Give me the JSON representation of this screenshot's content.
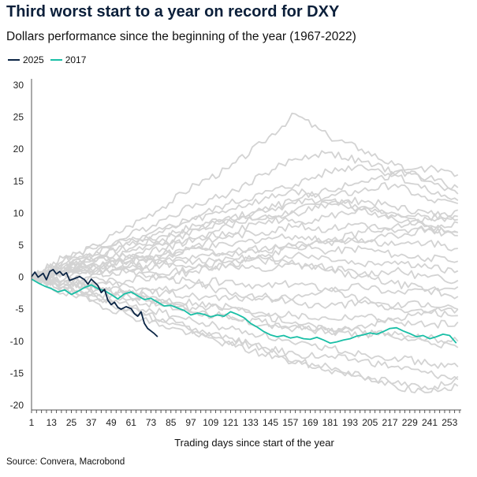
{
  "chart_data": {
    "type": "line",
    "title": "Third worst start to a year on record for DXY",
    "subtitle": "Dollars performance since the beginning of the year (1967-2022)",
    "xlabel": "Trading days since start of the year",
    "ylabel": "",
    "source": "Source: Convera, Macrobond",
    "xlim": [
      1,
      260
    ],
    "ylim": [
      -20,
      30
    ],
    "x_ticks": [
      1,
      13,
      25,
      37,
      49,
      61,
      73,
      85,
      97,
      109,
      121,
      133,
      145,
      157,
      169,
      181,
      193,
      205,
      217,
      229,
      241,
      253
    ],
    "y_ticks": [
      30,
      25,
      20,
      15,
      10,
      5,
      0,
      -5,
      -10,
      -15,
      -20
    ],
    "colors": {
      "background_years": "#d3d3d3",
      "y2025": "#0b2545",
      "y2017": "#19bfa6",
      "axis": "#555555"
    },
    "legend": [
      {
        "label": "2025",
        "color": "#0b2545"
      },
      {
        "label": "2017",
        "color": "#19bfa6"
      }
    ],
    "series": [
      {
        "name": "2025",
        "highlight": true,
        "color": "#0b2545",
        "x": [
          1,
          3,
          5,
          8,
          10,
          12,
          14,
          16,
          18,
          20,
          22,
          24,
          26,
          28,
          30,
          33,
          35,
          37,
          39,
          41,
          43,
          45,
          47,
          49,
          51,
          53,
          55,
          58,
          61,
          63,
          65,
          67,
          69,
          71,
          73,
          75,
          77
        ],
        "y": [
          0.1,
          0.8,
          0.0,
          0.6,
          -0.4,
          0.9,
          1.2,
          0.5,
          0.9,
          0.3,
          0.7,
          -0.5,
          -0.3,
          -0.1,
          0.1,
          -0.4,
          -1.1,
          -0.3,
          -0.8,
          -1.3,
          -2.4,
          -1.9,
          -3.6,
          -4.3,
          -3.9,
          -4.7,
          -5.0,
          -4.6,
          -4.9,
          -5.7,
          -6.1,
          -5.4,
          -7.2,
          -8.0,
          -8.4,
          -8.8,
          -9.3
        ]
      },
      {
        "name": "2017",
        "highlight": true,
        "color": "#19bfa6",
        "x": [
          1,
          5,
          9,
          13,
          17,
          21,
          25,
          29,
          33,
          37,
          41,
          45,
          49,
          53,
          57,
          61,
          65,
          69,
          73,
          77,
          81,
          85,
          89,
          93,
          97,
          101,
          105,
          109,
          113,
          117,
          121,
          125,
          129,
          133,
          137,
          141,
          145,
          149,
          153,
          157,
          161,
          165,
          169,
          173,
          177,
          181,
          185,
          189,
          193,
          197,
          201,
          205,
          209,
          213,
          217,
          221,
          225,
          229,
          233,
          237,
          241,
          245,
          249,
          253,
          257
        ],
        "y": [
          -0.3,
          -0.9,
          -1.4,
          -1.8,
          -2.3,
          -2.0,
          -2.7,
          -2.2,
          -1.6,
          -1.2,
          -1.8,
          -2.1,
          -2.7,
          -3.4,
          -2.6,
          -2.3,
          -2.9,
          -3.5,
          -3.3,
          -3.9,
          -4.5,
          -4.4,
          -4.8,
          -5.2,
          -5.9,
          -5.6,
          -5.8,
          -6.2,
          -5.9,
          -6.1,
          -5.4,
          -5.8,
          -6.3,
          -7.2,
          -7.8,
          -8.5,
          -9.0,
          -9.3,
          -9.1,
          -9.5,
          -9.3,
          -9.6,
          -9.7,
          -9.4,
          -9.8,
          -10.3,
          -10.1,
          -9.8,
          -9.6,
          -9.2,
          -9.0,
          -8.7,
          -8.9,
          -8.5,
          -8.0,
          -7.9,
          -8.4,
          -8.8,
          -9.3,
          -9.1,
          -9.6,
          -9.3,
          -8.9,
          -9.1,
          -10.3
        ]
      }
    ],
    "background_series": [
      {
        "name": "y1",
        "x": [
          1,
          20,
          40,
          60,
          80,
          100,
          120,
          140,
          160,
          180,
          200,
          220,
          240,
          258
        ],
        "y": [
          0,
          2.5,
          5.0,
          8.0,
          11.0,
          14.5,
          17.0,
          21.0,
          25.5,
          22.0,
          20.0,
          17.5,
          15.0,
          13.0
        ]
      },
      {
        "name": "y2",
        "x": [
          1,
          20,
          40,
          60,
          80,
          100,
          120,
          140,
          160,
          180,
          200,
          220,
          240,
          258
        ],
        "y": [
          0,
          2.0,
          4.0,
          6.5,
          9.0,
          11.5,
          13.0,
          16.0,
          18.5,
          19.5,
          18.0,
          16.5,
          15.5,
          14.0
        ]
      },
      {
        "name": "y3",
        "x": [
          1,
          20,
          40,
          60,
          80,
          100,
          120,
          140,
          160,
          180,
          200,
          220,
          240,
          258
        ],
        "y": [
          0,
          1.5,
          3.0,
          5.0,
          7.5,
          9.5,
          11.5,
          13.0,
          14.5,
          16.5,
          17.5,
          16.0,
          13.5,
          12.0
        ]
      },
      {
        "name": "y4",
        "x": [
          1,
          20,
          40,
          60,
          80,
          100,
          120,
          140,
          160,
          180,
          200,
          220,
          240,
          258
        ],
        "y": [
          0,
          1.0,
          2.5,
          4.0,
          6.0,
          7.5,
          9.0,
          10.5,
          11.5,
          12.5,
          13.5,
          14.5,
          12.0,
          11.5
        ]
      },
      {
        "name": "y5",
        "x": [
          1,
          20,
          40,
          60,
          80,
          100,
          120,
          140,
          160,
          180,
          200,
          220,
          240,
          258
        ],
        "y": [
          0,
          1.5,
          3.5,
          4.5,
          6.5,
          8.0,
          9.5,
          9.0,
          10.5,
          11.5,
          12.0,
          11.0,
          10.0,
          9.5
        ]
      },
      {
        "name": "y6",
        "x": [
          1,
          20,
          40,
          60,
          80,
          100,
          120,
          140,
          160,
          180,
          200,
          220,
          240,
          258
        ],
        "y": [
          0,
          0.5,
          2.0,
          3.0,
          5.0,
          6.0,
          8.0,
          9.5,
          8.5,
          9.5,
          10.5,
          9.5,
          8.0,
          7.0
        ]
      },
      {
        "name": "y7",
        "x": [
          1,
          20,
          40,
          60,
          80,
          100,
          120,
          140,
          160,
          180,
          200,
          220,
          240,
          258
        ],
        "y": [
          0,
          1.0,
          1.5,
          2.5,
          3.5,
          5.0,
          6.5,
          7.0,
          8.0,
          7.5,
          8.5,
          7.0,
          7.5,
          6.5
        ]
      },
      {
        "name": "y8",
        "x": [
          1,
          20,
          40,
          60,
          80,
          100,
          120,
          140,
          160,
          180,
          200,
          220,
          240,
          258
        ],
        "y": [
          0,
          0.5,
          1.5,
          2.0,
          3.0,
          4.5,
          5.0,
          6.0,
          6.5,
          5.5,
          6.0,
          5.0,
          5.5,
          4.5
        ]
      },
      {
        "name": "y9",
        "x": [
          1,
          20,
          40,
          60,
          80,
          100,
          120,
          140,
          160,
          180,
          200,
          220,
          240,
          258
        ],
        "y": [
          0,
          0.5,
          1.0,
          1.5,
          2.5,
          3.0,
          4.0,
          4.5,
          5.0,
          4.0,
          4.5,
          3.5,
          3.0,
          2.5
        ]
      },
      {
        "name": "y10",
        "x": [
          1,
          20,
          40,
          60,
          80,
          100,
          120,
          140,
          160,
          180,
          200,
          220,
          240,
          258
        ],
        "y": [
          0,
          1.0,
          0.5,
          1.0,
          2.0,
          2.5,
          3.0,
          2.5,
          3.5,
          3.0,
          2.0,
          2.5,
          1.5,
          1.0
        ]
      },
      {
        "name": "y11",
        "x": [
          1,
          20,
          40,
          60,
          80,
          100,
          120,
          140,
          160,
          180,
          200,
          220,
          240,
          258
        ],
        "y": [
          0,
          -0.5,
          0.5,
          1.0,
          0.5,
          1.5,
          2.0,
          1.0,
          2.0,
          1.5,
          0.5,
          1.0,
          0.0,
          -0.5
        ]
      },
      {
        "name": "y12",
        "x": [
          1,
          20,
          40,
          60,
          80,
          100,
          120,
          140,
          160,
          180,
          200,
          220,
          240,
          258
        ],
        "y": [
          0,
          -0.5,
          -1.0,
          -0.5,
          0.0,
          -1.0,
          -0.5,
          -1.5,
          -1.0,
          -2.0,
          -1.5,
          -2.5,
          -2.0,
          -3.0
        ]
      },
      {
        "name": "y13",
        "x": [
          1,
          20,
          40,
          60,
          80,
          100,
          120,
          140,
          160,
          180,
          200,
          220,
          240,
          258
        ],
        "y": [
          0,
          -1.0,
          -1.5,
          -2.0,
          -2.5,
          -3.0,
          -3.5,
          -3.0,
          -4.0,
          -4.5,
          -4.0,
          -5.0,
          -5.5,
          -5.0
        ]
      },
      {
        "name": "y14",
        "x": [
          1,
          20,
          40,
          60,
          80,
          100,
          120,
          140,
          160,
          180,
          200,
          220,
          240,
          258
        ],
        "y": [
          0,
          -0.5,
          -2.0,
          -2.5,
          -3.5,
          -4.0,
          -5.0,
          -5.5,
          -6.0,
          -6.5,
          -6.0,
          -7.0,
          -7.5,
          -7.0
        ]
      },
      {
        "name": "y15",
        "x": [
          1,
          20,
          40,
          60,
          80,
          100,
          120,
          140,
          160,
          180,
          200,
          220,
          240,
          258
        ],
        "y": [
          0,
          -1.5,
          -2.5,
          -3.5,
          -4.5,
          -5.5,
          -6.5,
          -7.5,
          -8.0,
          -8.5,
          -9.0,
          -8.5,
          -9.5,
          -10.0
        ]
      },
      {
        "name": "y16",
        "x": [
          1,
          20,
          40,
          60,
          80,
          100,
          120,
          140,
          160,
          180,
          200,
          220,
          240,
          258
        ],
        "y": [
          0,
          -2.0,
          -3.0,
          -4.5,
          -5.5,
          -7.0,
          -8.0,
          -9.0,
          -10.5,
          -11.0,
          -12.0,
          -12.5,
          -13.5,
          -14.0
        ]
      },
      {
        "name": "y17",
        "x": [
          1,
          20,
          40,
          60,
          80,
          100,
          120,
          140,
          160,
          180,
          200,
          220,
          240,
          258
        ],
        "y": [
          0,
          -2.5,
          -4.0,
          -6.0,
          -7.5,
          -9.0,
          -10.5,
          -12.0,
          -13.0,
          -14.5,
          -15.5,
          -16.5,
          -17.5,
          -17.0
        ]
      },
      {
        "name": "y18",
        "x": [
          1,
          20,
          40,
          60,
          80,
          100,
          120,
          140,
          160,
          180,
          200,
          220,
          240,
          258
        ],
        "y": [
          0,
          -1.5,
          -3.0,
          -5.0,
          -7.0,
          -8.5,
          -10.0,
          -11.0,
          -12.0,
          -12.5,
          -13.0,
          -14.0,
          -15.0,
          -16.0
        ]
      },
      {
        "name": "y19",
        "x": [
          1,
          20,
          40,
          60,
          80,
          100,
          120,
          140,
          160,
          180,
          200,
          220,
          240,
          258
        ],
        "y": [
          0,
          -1.0,
          -2.0,
          -3.0,
          -4.0,
          -5.5,
          -6.0,
          -7.0,
          -7.5,
          -8.0,
          -8.5,
          -9.5,
          -10.0,
          -11.0
        ]
      },
      {
        "name": "y20",
        "x": [
          1,
          20,
          40,
          60,
          80,
          100,
          120,
          140,
          160,
          180,
          200,
          220,
          240,
          258
        ],
        "y": [
          0,
          0.5,
          1.5,
          3.0,
          4.5,
          6.0,
          7.0,
          8.5,
          10.0,
          11.5,
          10.5,
          9.0,
          8.0,
          8.5
        ]
      },
      {
        "name": "y21",
        "x": [
          1,
          20,
          40,
          60,
          80,
          100,
          120,
          140,
          160,
          180,
          200,
          220,
          240,
          258
        ],
        "y": [
          0,
          2.0,
          3.0,
          2.5,
          3.5,
          4.5,
          3.5,
          4.0,
          5.0,
          6.0,
          5.5,
          6.5,
          7.5,
          7.0
        ]
      },
      {
        "name": "y22",
        "x": [
          1,
          20,
          40,
          60,
          80,
          100,
          120,
          140,
          160,
          180,
          200,
          220,
          240,
          258
        ],
        "y": [
          0,
          -1.0,
          0.0,
          -1.5,
          -2.0,
          -1.0,
          -2.5,
          -3.5,
          -3.0,
          -2.0,
          -3.5,
          -4.5,
          -4.0,
          -5.0
        ]
      },
      {
        "name": "y23",
        "x": [
          1,
          20,
          40,
          60,
          80,
          100,
          120,
          140,
          160,
          180,
          200,
          220,
          240,
          258
        ],
        "y": [
          0,
          1.5,
          2.5,
          3.5,
          2.5,
          1.5,
          2.5,
          3.5,
          4.5,
          5.5,
          7.0,
          8.0,
          9.0,
          10.5
        ]
      },
      {
        "name": "y24",
        "x": [
          1,
          20,
          40,
          60,
          80,
          100,
          120,
          140,
          160,
          180,
          200,
          220,
          240,
          258
        ],
        "y": [
          0,
          -0.5,
          -1.5,
          -3.0,
          -4.0,
          -5.0,
          -4.5,
          -6.0,
          -7.0,
          -8.5,
          -7.5,
          -6.5,
          -5.5,
          -6.0
        ]
      },
      {
        "name": "y25",
        "x": [
          1,
          20,
          40,
          60,
          80,
          100,
          120,
          140,
          160,
          180,
          200,
          220,
          240,
          258
        ],
        "y": [
          0,
          2.5,
          4.0,
          5.5,
          7.0,
          9.0,
          10.5,
          12.0,
          13.5,
          12.0,
          11.0,
          10.0,
          9.5,
          9.0
        ]
      },
      {
        "name": "y26",
        "x": [
          1,
          20,
          40,
          60,
          80,
          100,
          120,
          140,
          160,
          180,
          200,
          220,
          240,
          258
        ],
        "y": [
          0,
          -1.5,
          -3.5,
          -5.0,
          -6.5,
          -8.0,
          -9.5,
          -11.0,
          -13.5,
          -14.0,
          -15.5,
          -17.0,
          -18.0,
          -15.5
        ]
      },
      {
        "name": "y27",
        "x": [
          1,
          20,
          40,
          60,
          80,
          100,
          120,
          140,
          160,
          180,
          200,
          220,
          240,
          258
        ],
        "y": [
          0,
          1.0,
          2.0,
          1.0,
          0.0,
          1.0,
          2.0,
          3.0,
          2.0,
          1.0,
          0.0,
          -1.0,
          -2.0,
          -1.5
        ]
      },
      {
        "name": "y28",
        "x": [
          1,
          20,
          40,
          60,
          80,
          100,
          120,
          140,
          160,
          180,
          200,
          220,
          240,
          258
        ],
        "y": [
          0,
          3.0,
          4.5,
          6.0,
          5.0,
          7.5,
          9.0,
          10.5,
          12.0,
          13.5,
          15.0,
          16.0,
          17.0,
          16.0
        ]
      }
    ]
  }
}
